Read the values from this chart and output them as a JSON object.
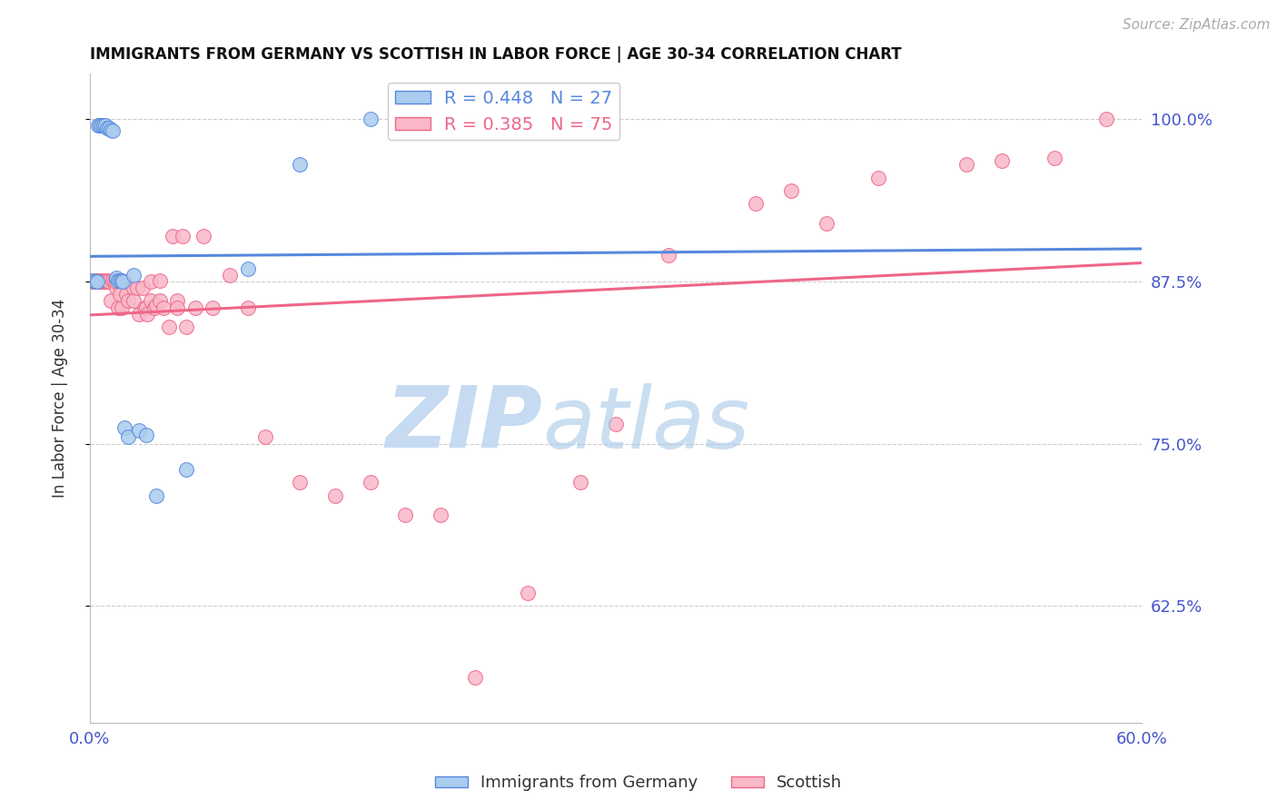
{
  "title": "IMMIGRANTS FROM GERMANY VS SCOTTISH IN LABOR FORCE | AGE 30-34 CORRELATION CHART",
  "source": "Source: ZipAtlas.com",
  "ylabel": "In Labor Force | Age 30-34",
  "xlim": [
    0.0,
    0.6
  ],
  "ylim": [
    0.535,
    1.035
  ],
  "yticks": [
    0.625,
    0.75,
    0.875,
    1.0
  ],
  "ytick_labels": [
    "62.5%",
    "75.0%",
    "87.5%",
    "100.0%"
  ],
  "xticks": [
    0.0,
    0.1,
    0.2,
    0.3,
    0.4,
    0.5,
    0.6
  ],
  "xtick_labels": [
    "0.0%",
    "",
    "",
    "",
    "",
    "",
    "60.0%"
  ],
  "germany_R": 0.448,
  "germany_N": 27,
  "scottish_R": 0.385,
  "scottish_N": 75,
  "germany_dot_color": "#AACCEE",
  "scottish_dot_color": "#F8B8C8",
  "germany_line_color": "#5588DD",
  "scottish_line_color": "#EE6688",
  "axis_label_color": "#4455CC",
  "germany_x": [
    0.002,
    0.003,
    0.004,
    0.005,
    0.006,
    0.007,
    0.008,
    0.009,
    0.01,
    0.011,
    0.012,
    0.013,
    0.015,
    0.016,
    0.017,
    0.018,
    0.019,
    0.02,
    0.022,
    0.025,
    0.028,
    0.032,
    0.038,
    0.055,
    0.09,
    0.12,
    0.16
  ],
  "germany_y": [
    0.876,
    0.875,
    0.875,
    0.995,
    0.995,
    0.995,
    0.995,
    0.995,
    0.993,
    0.993,
    0.992,
    0.991,
    0.878,
    0.876,
    0.876,
    0.876,
    0.875,
    0.762,
    0.755,
    0.88,
    0.76,
    0.757,
    0.71,
    0.73,
    0.885,
    0.965,
    1.0
  ],
  "scottish_x": [
    0.0,
    0.001,
    0.002,
    0.003,
    0.004,
    0.004,
    0.005,
    0.005,
    0.006,
    0.006,
    0.007,
    0.007,
    0.008,
    0.008,
    0.009,
    0.009,
    0.01,
    0.01,
    0.011,
    0.012,
    0.013,
    0.014,
    0.015,
    0.015,
    0.016,
    0.017,
    0.018,
    0.02,
    0.021,
    0.022,
    0.025,
    0.025,
    0.027,
    0.028,
    0.03,
    0.031,
    0.032,
    0.033,
    0.035,
    0.035,
    0.037,
    0.038,
    0.04,
    0.04,
    0.042,
    0.045,
    0.047,
    0.05,
    0.05,
    0.053,
    0.055,
    0.06,
    0.065,
    0.07,
    0.08,
    0.09,
    0.1,
    0.12,
    0.14,
    0.16,
    0.18,
    0.2,
    0.22,
    0.25,
    0.28,
    0.3,
    0.33,
    0.38,
    0.4,
    0.42,
    0.45,
    0.5,
    0.52,
    0.55,
    0.58
  ],
  "scottish_y": [
    0.876,
    0.875,
    0.875,
    0.875,
    0.875,
    0.876,
    0.875,
    0.876,
    0.875,
    0.876,
    0.875,
    0.876,
    0.876,
    0.875,
    0.876,
    0.875,
    0.875,
    0.876,
    0.875,
    0.86,
    0.876,
    0.875,
    0.87,
    0.875,
    0.855,
    0.865,
    0.855,
    0.875,
    0.865,
    0.86,
    0.87,
    0.86,
    0.87,
    0.85,
    0.87,
    0.855,
    0.855,
    0.85,
    0.86,
    0.875,
    0.855,
    0.857,
    0.86,
    0.876,
    0.855,
    0.84,
    0.91,
    0.86,
    0.855,
    0.91,
    0.84,
    0.855,
    0.91,
    0.855,
    0.88,
    0.855,
    0.755,
    0.72,
    0.71,
    0.72,
    0.695,
    0.695,
    0.57,
    0.635,
    0.72,
    0.765,
    0.895,
    0.935,
    0.945,
    0.92,
    0.955,
    0.965,
    0.968,
    0.97,
    1.0
  ]
}
